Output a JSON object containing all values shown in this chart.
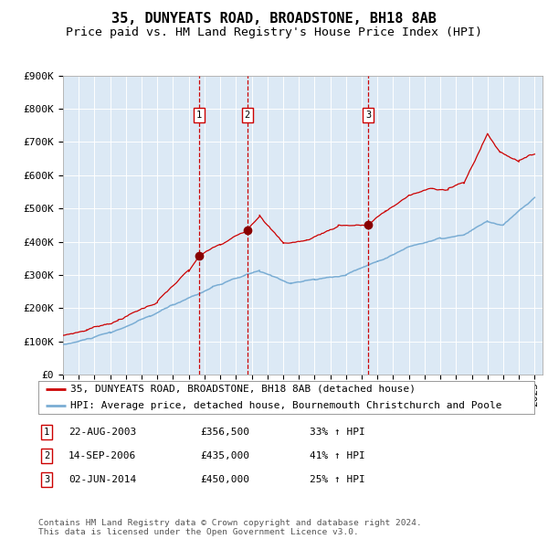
{
  "title": "35, DUNYEATS ROAD, BROADSTONE, BH18 8AB",
  "subtitle": "Price paid vs. HM Land Registry's House Price Index (HPI)",
  "background_color": "#ffffff",
  "plot_bg_color": "#dce9f5",
  "grid_color": "#ffffff",
  "red_line_color": "#cc0000",
  "blue_line_color": "#7aadd4",
  "sale_marker_color": "#880000",
  "vline_color": "#cc0000",
  "sale_dates": [
    2003.64,
    2006.71,
    2014.42
  ],
  "sale_prices": [
    356500,
    435000,
    450000
  ],
  "sale_labels": [
    "1",
    "2",
    "3"
  ],
  "ylim": [
    0,
    900000
  ],
  "xlim": [
    1995.0,
    2025.5
  ],
  "ytick_values": [
    0,
    100000,
    200000,
    300000,
    400000,
    500000,
    600000,
    700000,
    800000,
    900000
  ],
  "ytick_labels": [
    "£0",
    "£100K",
    "£200K",
    "£300K",
    "£400K",
    "£500K",
    "£600K",
    "£700K",
    "£800K",
    "£900K"
  ],
  "xtick_years": [
    1995,
    1996,
    1997,
    1998,
    1999,
    2000,
    2001,
    2002,
    2003,
    2004,
    2005,
    2006,
    2007,
    2008,
    2009,
    2010,
    2011,
    2012,
    2013,
    2014,
    2015,
    2016,
    2017,
    2018,
    2019,
    2020,
    2021,
    2022,
    2023,
    2024,
    2025
  ],
  "legend_line1": "35, DUNYEATS ROAD, BROADSTONE, BH18 8AB (detached house)",
  "legend_line2": "HPI: Average price, detached house, Bournemouth Christchurch and Poole",
  "table_rows": [
    [
      "1",
      "22-AUG-2003",
      "£356,500",
      "33% ↑ HPI"
    ],
    [
      "2",
      "14-SEP-2006",
      "£435,000",
      "41% ↑ HPI"
    ],
    [
      "3",
      "02-JUN-2014",
      "£450,000",
      "25% ↑ HPI"
    ]
  ],
  "footnote": "Contains HM Land Registry data © Crown copyright and database right 2024.\nThis data is licensed under the Open Government Licence v3.0.",
  "title_fontsize": 11,
  "subtitle_fontsize": 9.5,
  "tick_fontsize": 8,
  "legend_fontsize": 8
}
